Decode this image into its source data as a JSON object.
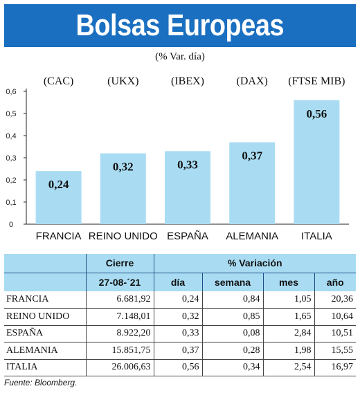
{
  "title": "Bolsas Europeas",
  "subtitle": "(% Var. día)",
  "chart_data": {
    "type": "bar",
    "categories": [
      "FRANCIA",
      "REINO UNIDO",
      "ESPAÑA",
      "ALEMANIA",
      "ITALIA"
    ],
    "index_codes": [
      "(CAC)",
      "(UKX)",
      "(IBEX)",
      "(DAX)",
      "(FTSE MIB)"
    ],
    "values": [
      0.24,
      0.32,
      0.33,
      0.37,
      0.56
    ],
    "value_labels": [
      "0,24",
      "0,32",
      "0,33",
      "0,37",
      "0,56"
    ],
    "y_ticks": [
      "0",
      "0,1",
      "0,2",
      "0,3",
      "0,4",
      "0,5",
      "0,6"
    ],
    "ylim": [
      0,
      0.6
    ],
    "bar_color": "#a9dcf2"
  },
  "table": {
    "header_cierre": "Cierre",
    "header_variacion": "% Variación",
    "date": "27-08-´21",
    "col_dia": "día",
    "col_semana": "semana",
    "col_mes": "mes",
    "col_ano": "año",
    "rows": [
      {
        "country": "FRANCIA",
        "cierre": "6.681,92",
        "dia": "0,24",
        "semana": "0,84",
        "mes": "1,05",
        "ano": "20,36"
      },
      {
        "country": "REINO UNIDO",
        "cierre": "7.148,01",
        "dia": "0,32",
        "semana": "0,85",
        "mes": "1,65",
        "ano": "10,64"
      },
      {
        "country": "ESPAÑA",
        "cierre": "8.922,20",
        "dia": "0,33",
        "semana": "0,08",
        "mes": "2,84",
        "ano": "10,51"
      },
      {
        "country": "ALEMANIA",
        "cierre": "15.851,75",
        "dia": "0,37",
        "semana": "0,28",
        "mes": "1,98",
        "ano": "15,55"
      },
      {
        "country": "ITALIA",
        "cierre": "26.006,63",
        "dia": "0,56",
        "semana": "0,34",
        "mes": "2,54",
        "ano": "16,97"
      }
    ]
  },
  "source": "Fuente: Bloomberg.",
  "accent_color": "#1a6fc0"
}
